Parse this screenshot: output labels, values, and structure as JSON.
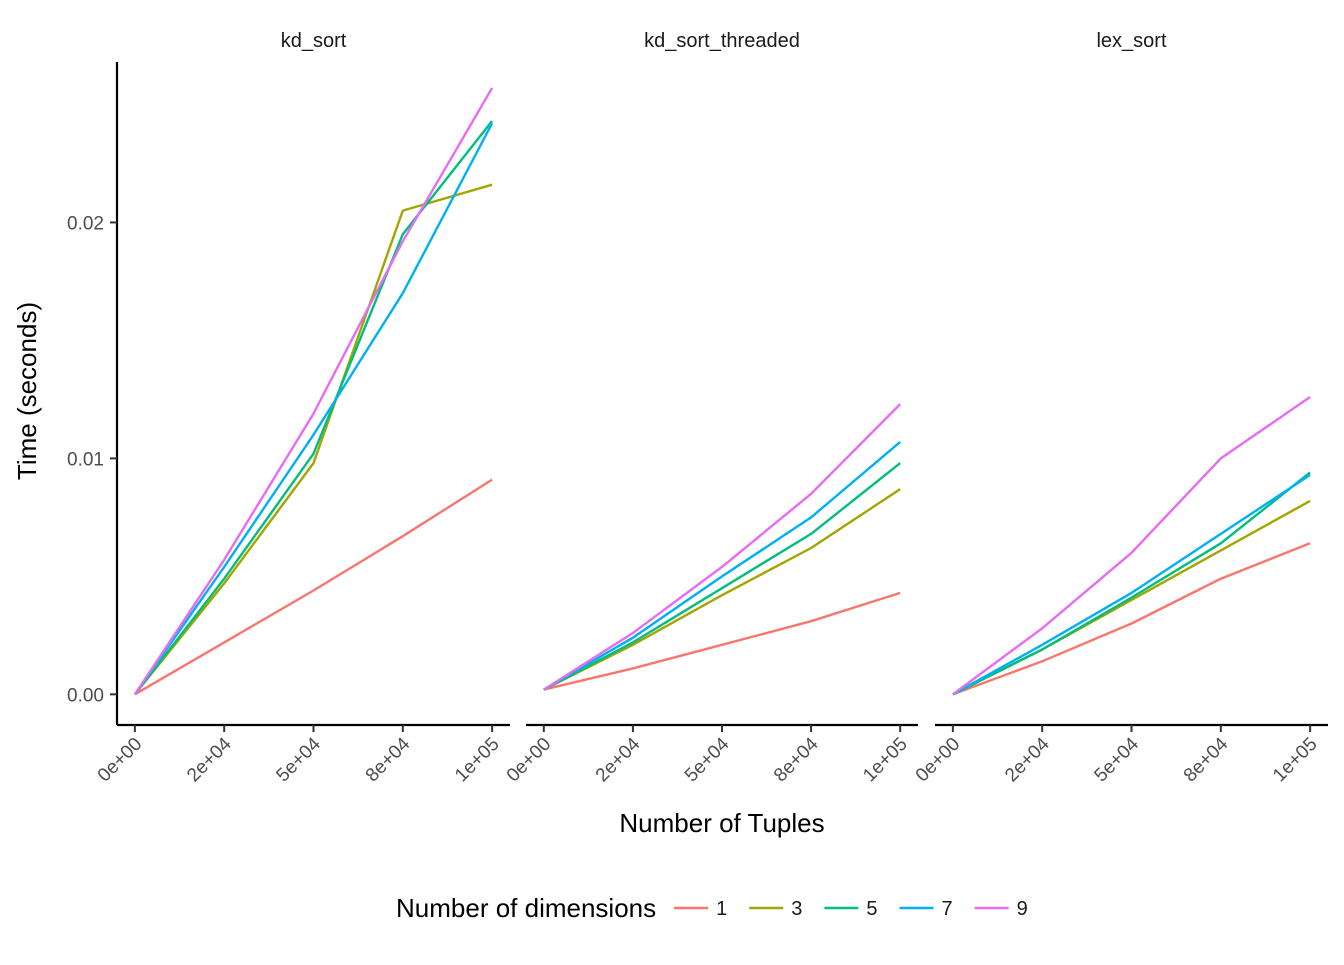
{
  "chart_data": {
    "type": "line",
    "xlabel": "Number of Tuples",
    "ylabel": "Time (seconds)",
    "x": [
      0,
      25000,
      50000,
      75000,
      100000
    ],
    "x_tick_labels": [
      "0e+00",
      "2e+04",
      "5e+04",
      "8e+04",
      "1e+05"
    ],
    "y_ticks": [
      0,
      0.01,
      0.02
    ],
    "y_tick_labels": [
      "0.00",
      "0.01",
      "0.02"
    ],
    "ylim": [
      -0.0013,
      0.0268
    ],
    "xlim": [
      -5000,
      105000
    ],
    "grid": false,
    "legend": {
      "title": "Number of dimensions",
      "position": "bottom",
      "entries": [
        {
          "label": "1",
          "color": "#F8766D"
        },
        {
          "label": "3",
          "color": "#A3A500"
        },
        {
          "label": "5",
          "color": "#00BF7D"
        },
        {
          "label": "7",
          "color": "#00B0F6"
        },
        {
          "label": "9",
          "color": "#E76BF3"
        }
      ]
    },
    "panels": [
      {
        "title": "kd_sort",
        "series": [
          {
            "name": "1",
            "values": [
              0.0,
              0.0022,
              0.0044,
              0.0067,
              0.0091
            ]
          },
          {
            "name": "3",
            "values": [
              0.0,
              0.0047,
              0.0098,
              0.0205,
              0.0216
            ]
          },
          {
            "name": "5",
            "values": [
              0.0,
              0.0049,
              0.0102,
              0.0195,
              0.0243
            ]
          },
          {
            "name": "7",
            "values": [
              0.0,
              0.0054,
              0.011,
              0.017,
              0.0242
            ]
          },
          {
            "name": "9",
            "values": [
              0.0,
              0.0057,
              0.0119,
              0.0192,
              0.0257
            ]
          }
        ]
      },
      {
        "title": "kd_sort_threaded",
        "series": [
          {
            "name": "1",
            "values": [
              0.0002,
              0.0011,
              0.0021,
              0.0031,
              0.0043
            ]
          },
          {
            "name": "3",
            "values": [
              0.0002,
              0.0021,
              0.0042,
              0.0062,
              0.0087
            ]
          },
          {
            "name": "5",
            "values": [
              0.0002,
              0.0022,
              0.0045,
              0.0068,
              0.0098
            ]
          },
          {
            "name": "7",
            "values": [
              0.0002,
              0.0024,
              0.005,
              0.0075,
              0.0107
            ]
          },
          {
            "name": "9",
            "values": [
              0.0002,
              0.0026,
              0.0054,
              0.0085,
              0.0123
            ]
          }
        ]
      },
      {
        "title": "lex_sort",
        "series": [
          {
            "name": "1",
            "values": [
              0.0,
              0.0014,
              0.003,
              0.0049,
              0.0064
            ]
          },
          {
            "name": "3",
            "values": [
              0.0,
              0.0019,
              0.004,
              0.0061,
              0.0082
            ]
          },
          {
            "name": "5",
            "values": [
              0.0,
              0.0019,
              0.0041,
              0.0064,
              0.0094
            ]
          },
          {
            "name": "7",
            "values": [
              0.0,
              0.0021,
              0.0043,
              0.0068,
              0.0093
            ]
          },
          {
            "name": "9",
            "values": [
              0.0,
              0.0028,
              0.006,
              0.01,
              0.0126
            ]
          }
        ]
      }
    ]
  }
}
